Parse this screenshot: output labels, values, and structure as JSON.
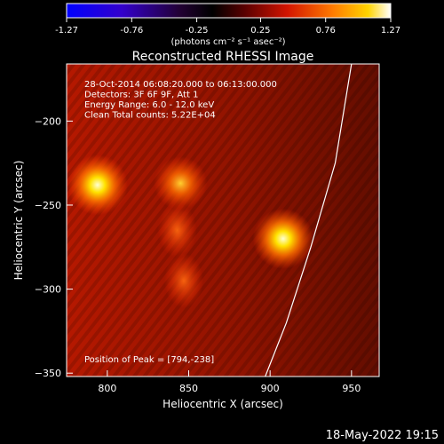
{
  "chart_data": {
    "type": "heatmap",
    "title": "Reconstructed RHESSI Image",
    "xlabel": "Heliocentric X (arcsec)",
    "ylabel": "Heliocentric Y (arcsec)",
    "xlim": [
      775,
      967
    ],
    "ylim": [
      -352,
      -166
    ],
    "x_ticks": [
      800,
      850,
      900,
      950
    ],
    "y_ticks": [
      -200,
      -250,
      -300,
      -350
    ],
    "colorbar": {
      "range": [
        -1.27,
        1.27
      ],
      "ticks": [
        "-1.27",
        "-0.76",
        "-0.25",
        "0.25",
        "0.76",
        "1.27"
      ],
      "unit_label": "(photons cm⁻² s⁻¹ asec⁻²)"
    },
    "annotations": [
      "28-Oct-2014 06:08:20.000 to 06:13:00.000",
      "Detectors: 3F 6F 9F, Att 1",
      "Energy Range: 6.0 - 12.0 keV",
      "Clean    Total counts: 5.22E+04"
    ],
    "peak_label": "Position of Peak = [794,-238]",
    "sources": [
      {
        "x": 794,
        "y": -238,
        "intensity": 1.27
      },
      {
        "x": 845,
        "y": -237,
        "intensity": 1.0
      },
      {
        "x": 908,
        "y": -270,
        "intensity": 1.2
      },
      {
        "x": 843,
        "y": -265,
        "intensity": 0.55
      },
      {
        "x": 847,
        "y": -295,
        "intensity": 0.5
      }
    ],
    "limb_curve": [
      [
        950,
        -166
      ],
      [
        940,
        -225
      ],
      [
        925,
        -275
      ],
      [
        910,
        -320
      ],
      [
        897,
        -352
      ]
    ]
  },
  "timestamp": "18-May-2022 19:15"
}
